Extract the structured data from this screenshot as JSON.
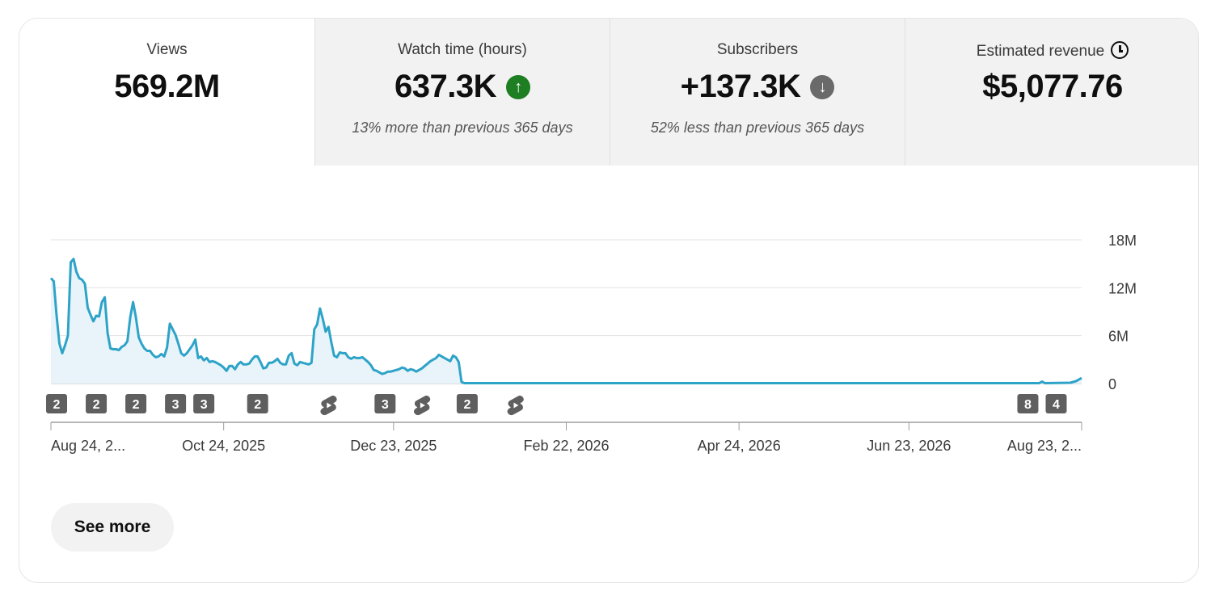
{
  "tabs": [
    {
      "label": "Views",
      "value": "569.2M",
      "compare": ""
    },
    {
      "label": "Watch time (hours)",
      "value": "637.3K",
      "compare": "13% more than previous 365 days",
      "trend": "up"
    },
    {
      "label": "Subscribers",
      "value": "+137.3K",
      "compare": "52% less than previous 365 days",
      "trend": "down"
    },
    {
      "label": "Estimated revenue",
      "value": "$5,077.76",
      "compare": "",
      "icon": "clock-icon"
    }
  ],
  "colors": {
    "line": "#2ea3c8",
    "fill": "#e8f4fa",
    "up": "#1e7e22",
    "down": "#6a6a6a",
    "marker": "#5f5f5f"
  },
  "chart_data": {
    "type": "area",
    "x_start": "Aug 24, 2025",
    "x_end": "Aug 23, 2026",
    "yticks": [
      "18M",
      "12M",
      "6M",
      "0"
    ],
    "ytick_values": [
      18,
      12,
      6,
      0
    ],
    "ylim": [
      0,
      18
    ],
    "xticks": [
      {
        "label": "Aug 24, 2...",
        "day": 0
      },
      {
        "label": "Oct 24, 2025",
        "day": 61
      },
      {
        "label": "Dec 23, 2025",
        "day": 121
      },
      {
        "label": "Feb 22, 2026",
        "day": 182
      },
      {
        "label": "Apr 24, 2026",
        "day": 243
      },
      {
        "label": "Jun 23, 2026",
        "day": 303
      },
      {
        "label": "Aug 23, 2...",
        "day": 364
      }
    ],
    "series": [
      {
        "values_millions": [
          [
            0,
            13.2
          ],
          [
            1,
            12.8
          ],
          [
            2,
            8.5
          ],
          [
            3,
            5.0
          ],
          [
            4,
            3.8
          ],
          [
            5,
            4.8
          ],
          [
            6,
            6.0
          ],
          [
            7,
            15.2
          ],
          [
            8,
            15.6
          ],
          [
            9,
            14.0
          ],
          [
            10,
            13.2
          ],
          [
            11,
            13.0
          ],
          [
            12,
            12.5
          ],
          [
            13,
            9.5
          ],
          [
            14,
            8.6
          ],
          [
            15,
            7.8
          ],
          [
            16,
            8.5
          ],
          [
            17,
            8.4
          ],
          [
            18,
            10.2
          ],
          [
            19,
            10.8
          ],
          [
            20,
            6.3
          ],
          [
            21,
            4.4
          ],
          [
            22,
            4.3
          ],
          [
            23,
            4.3
          ],
          [
            24,
            4.2
          ],
          [
            25,
            4.6
          ],
          [
            26,
            4.8
          ],
          [
            27,
            5.3
          ],
          [
            28,
            8.3
          ],
          [
            29,
            10.2
          ],
          [
            30,
            8.3
          ],
          [
            31,
            5.8
          ],
          [
            32,
            5.0
          ],
          [
            33,
            4.4
          ],
          [
            34,
            4.1
          ],
          [
            35,
            4.1
          ],
          [
            36,
            3.6
          ],
          [
            37,
            3.3
          ],
          [
            38,
            3.4
          ],
          [
            39,
            3.7
          ],
          [
            40,
            3.4
          ],
          [
            41,
            4.5
          ],
          [
            42,
            7.5
          ],
          [
            43,
            6.8
          ],
          [
            44,
            6.1
          ],
          [
            45,
            5.0
          ],
          [
            46,
            3.8
          ],
          [
            47,
            3.5
          ],
          [
            48,
            3.8
          ],
          [
            49,
            4.3
          ],
          [
            50,
            4.8
          ],
          [
            51,
            5.5
          ],
          [
            52,
            3.2
          ],
          [
            53,
            3.4
          ],
          [
            54,
            2.9
          ],
          [
            55,
            3.2
          ],
          [
            56,
            2.7
          ],
          [
            57,
            2.8
          ],
          [
            58,
            2.7
          ],
          [
            59,
            2.5
          ],
          [
            60,
            2.3
          ],
          [
            61,
            2.0
          ],
          [
            62,
            1.6
          ],
          [
            63,
            2.2
          ],
          [
            64,
            2.2
          ],
          [
            65,
            1.8
          ],
          [
            66,
            2.4
          ],
          [
            67,
            2.7
          ],
          [
            68,
            2.4
          ],
          [
            69,
            2.4
          ],
          [
            70,
            2.5
          ],
          [
            71,
            3.0
          ],
          [
            72,
            3.4
          ],
          [
            73,
            3.4
          ],
          [
            74,
            2.7
          ],
          [
            75,
            1.9
          ],
          [
            76,
            2.0
          ],
          [
            77,
            2.6
          ],
          [
            78,
            2.6
          ],
          [
            79,
            2.8
          ],
          [
            80,
            3.1
          ],
          [
            81,
            2.6
          ],
          [
            82,
            2.4
          ],
          [
            83,
            2.4
          ],
          [
            84,
            3.5
          ],
          [
            85,
            3.8
          ],
          [
            86,
            2.5
          ],
          [
            87,
            2.3
          ],
          [
            88,
            2.7
          ],
          [
            89,
            2.6
          ],
          [
            90,
            2.5
          ],
          [
            91,
            2.4
          ],
          [
            92,
            2.6
          ],
          [
            93,
            6.8
          ],
          [
            94,
            7.4
          ],
          [
            95,
            9.4
          ],
          [
            96,
            8.1
          ],
          [
            97,
            6.5
          ],
          [
            98,
            7.1
          ],
          [
            99,
            5.2
          ],
          [
            100,
            3.5
          ],
          [
            101,
            3.3
          ],
          [
            102,
            3.9
          ],
          [
            103,
            3.8
          ],
          [
            104,
            3.8
          ],
          [
            105,
            3.3
          ],
          [
            106,
            3.1
          ],
          [
            107,
            3.3
          ],
          [
            108,
            3.2
          ],
          [
            109,
            3.2
          ],
          [
            110,
            3.3
          ],
          [
            111,
            3.0
          ],
          [
            112,
            2.7
          ],
          [
            113,
            2.3
          ],
          [
            114,
            1.7
          ],
          [
            115,
            1.6
          ],
          [
            116,
            1.4
          ],
          [
            117,
            1.2
          ],
          [
            118,
            1.3
          ],
          [
            119,
            1.5
          ],
          [
            120,
            1.5
          ],
          [
            121,
            1.6
          ],
          [
            122,
            1.7
          ],
          [
            123,
            1.8
          ],
          [
            124,
            2.0
          ],
          [
            125,
            1.9
          ],
          [
            126,
            1.6
          ],
          [
            127,
            1.8
          ],
          [
            128,
            1.7
          ],
          [
            129,
            1.5
          ],
          [
            130,
            1.7
          ],
          [
            131,
            1.9
          ],
          [
            132,
            2.2
          ],
          [
            133,
            2.5
          ],
          [
            134,
            2.8
          ],
          [
            135,
            3.0
          ],
          [
            136,
            3.2
          ],
          [
            137,
            3.6
          ],
          [
            138,
            3.4
          ],
          [
            139,
            3.2
          ],
          [
            140,
            3.0
          ],
          [
            141,
            2.8
          ],
          [
            142,
            3.5
          ],
          [
            143,
            3.3
          ],
          [
            144,
            2.7
          ],
          [
            145,
            0.2
          ],
          [
            146,
            0.05
          ],
          [
            200,
            0.05
          ],
          [
            280,
            0.05
          ],
          [
            349,
            0.05
          ],
          [
            350,
            0.25
          ],
          [
            351,
            0.05
          ],
          [
            360,
            0.1
          ],
          [
            362,
            0.3
          ],
          [
            363,
            0.5
          ],
          [
            364,
            0.7
          ]
        ]
      }
    ],
    "upload_markers": [
      {
        "day": 2,
        "text": "2"
      },
      {
        "day": 16,
        "text": "2"
      },
      {
        "day": 30,
        "text": "2"
      },
      {
        "day": 44,
        "text": "3"
      },
      {
        "day": 54,
        "text": "3"
      },
      {
        "day": 73,
        "text": "2"
      },
      {
        "day": 98,
        "text": "",
        "icon": "shorts-icon"
      },
      {
        "day": 118,
        "text": "3"
      },
      {
        "day": 131,
        "text": "",
        "icon": "shorts-icon"
      },
      {
        "day": 147,
        "text": "2"
      },
      {
        "day": 164,
        "text": "",
        "icon": "shorts-icon"
      },
      {
        "day": 345,
        "text": "8"
      },
      {
        "day": 355,
        "text": "4"
      }
    ]
  },
  "see_more": "See more"
}
